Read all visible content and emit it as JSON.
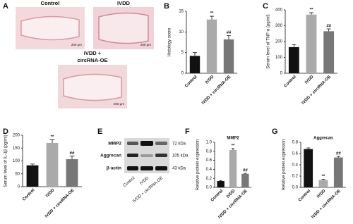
{
  "histology": {
    "panel": "A",
    "labels": [
      "Control",
      "IVDD"
    ],
    "third_label": [
      "IVDD +",
      "circRNA-OE"
    ],
    "scale_bars": [
      "200 μm",
      "200 μm",
      "200 μm"
    ]
  },
  "western_blot": {
    "panel": "E",
    "rows": [
      "MMP2",
      "Aggrecan",
      "β-actin"
    ],
    "sizes": [
      "72 kDa",
      "105 kDa",
      "43 kDa"
    ],
    "lanes": [
      "Control",
      "IVDD",
      "IVDD + circRNA-OE"
    ]
  },
  "chart_data": [
    {
      "type": "bar",
      "panel": "B",
      "y_label": "Histology score",
      "categories": [
        "Control",
        "IVDD",
        "IVDD + circRNA-OE"
      ],
      "values": [
        4.2,
        13,
        8.2
      ],
      "errors": [
        0.8,
        0.8,
        0.9
      ],
      "colors": [
        "#111111",
        "#aaaaaa",
        "#777777"
      ],
      "annotations": [
        null,
        "**",
        "##"
      ],
      "ylim": [
        0,
        15
      ],
      "yticks": [
        0,
        5,
        10,
        15
      ]
    },
    {
      "type": "bar",
      "panel": "C",
      "y_label": "Serum level of TNF-α (pg/ml)",
      "categories": [
        "Control",
        "IVDD",
        "IVDD + circRNA-OE"
      ],
      "values": [
        165,
        370,
        265
      ],
      "errors": [
        15,
        12,
        15
      ],
      "colors": [
        "#111111",
        "#aaaaaa",
        "#777777"
      ],
      "annotations": [
        null,
        "**",
        "##"
      ],
      "ylim": [
        0,
        400
      ],
      "yticks": [
        0,
        100,
        200,
        300,
        400
      ]
    },
    {
      "type": "bar",
      "panel": "D",
      "y_label": "Serum level of IL-1β (pg/ml)",
      "categories": [
        "Control",
        "IVDD",
        "IVDD + circRNA-OE"
      ],
      "values": [
        83,
        170,
        107
      ],
      "errors": [
        5,
        12,
        12
      ],
      "colors": [
        "#111111",
        "#aaaaaa",
        "#777777"
      ],
      "annotations": [
        null,
        "**",
        "##"
      ],
      "ylim": [
        0,
        200
      ],
      "yticks": [
        0,
        50,
        100,
        150,
        200
      ]
    },
    {
      "type": "bar",
      "panel": "F",
      "title": "MMP2",
      "y_label": "Relative protein expression",
      "categories": [
        "Control",
        "IVDD",
        "IVDD + circRNA-OE"
      ],
      "values": [
        0.14,
        0.83,
        0.3
      ],
      "errors": [
        0.01,
        0.03,
        0.01
      ],
      "colors": [
        "#111111",
        "#aaaaaa",
        "#777777"
      ],
      "annotations": [
        null,
        "**",
        "##"
      ],
      "ylim": [
        0,
        1
      ],
      "yticks": [
        {
          "value": 0,
          "label": "0.0"
        },
        0.2,
        0.4,
        0.6,
        0.8,
        {
          "value": 1,
          "label": "1.0"
        }
      ]
    },
    {
      "type": "bar",
      "panel": "G",
      "title": "Aggrecan",
      "y_label": "Relative protein expression",
      "categories": [
        "Control",
        "IVDD",
        "IVDD + circRNA-OE"
      ],
      "values": [
        0.68,
        0.13,
        0.53
      ],
      "errors": [
        0.02,
        0.015,
        0.02
      ],
      "colors": [
        "#111111",
        "#aaaaaa",
        "#777777"
      ],
      "annotations": [
        null,
        "**",
        "##"
      ],
      "ylim": [
        0,
        0.8
      ],
      "yticks": [
        {
          "value": 0,
          "label": "0.0"
        },
        0.2,
        0.4,
        0.6,
        0.8
      ]
    }
  ]
}
